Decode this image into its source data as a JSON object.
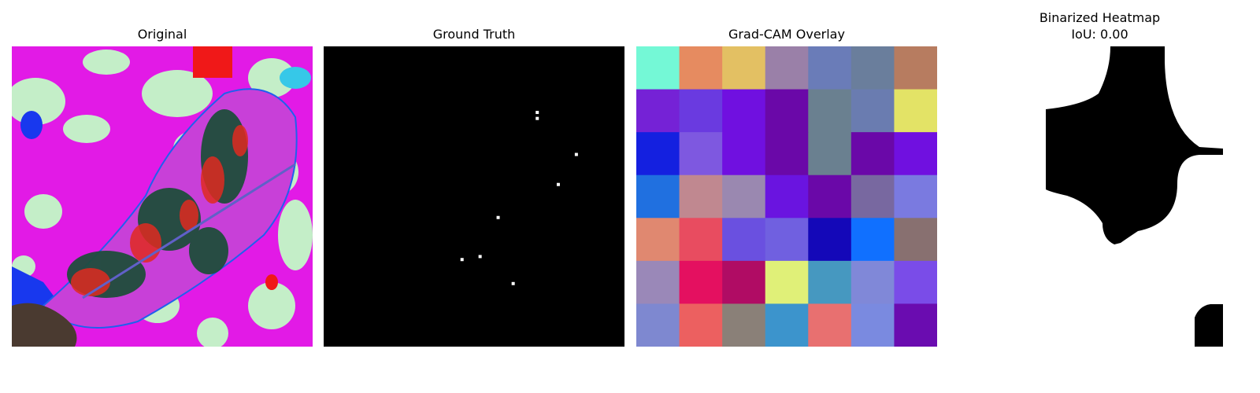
{
  "panels": [
    {
      "title": "Original"
    },
    {
      "title": "Ground Truth"
    },
    {
      "title": "Grad-CAM Overlay"
    },
    {
      "title": "Binarized Heatmap",
      "subtitle": "IoU: 0.00"
    }
  ],
  "ground_truth_points": [
    {
      "row": 0.22,
      "col": 0.71
    },
    {
      "row": 0.24,
      "col": 0.71
    },
    {
      "row": 0.36,
      "col": 0.84
    },
    {
      "row": 0.46,
      "col": 0.78
    },
    {
      "row": 0.57,
      "col": 0.58
    },
    {
      "row": 0.71,
      "col": 0.46
    },
    {
      "row": 0.7,
      "col": 0.52
    },
    {
      "row": 0.79,
      "col": 0.63
    }
  ],
  "gradcam_grid": [
    [
      "#74f8d6",
      "#e68b60",
      "#e3c063",
      "#9a80a8",
      "#6a7cb8",
      "#6a7e9c",
      "#b77c60"
    ],
    [
      "#7522d6",
      "#6a3ae0",
      "#7010e0",
      "#6a08a8",
      "#6a8090",
      "#6a7cb0",
      "#e3e366"
    ],
    [
      "#1420e0",
      "#7e58e0",
      "#7010e0",
      "#6a08a8",
      "#6a8090",
      "#6a08a8",
      "#7010e0"
    ],
    [
      "#2070e0",
      "#c08890",
      "#9a88b0",
      "#6a14e0",
      "#6a08a8",
      "#7868a0",
      "#7a7ae0"
    ],
    [
      "#e08870",
      "#e84c60",
      "#6a50e0",
      "#7060e0",
      "#1408b8",
      "#1070ff",
      "#887070"
    ],
    [
      "#9a88b8",
      "#e41060",
      "#b00c64",
      "#e0f078",
      "#4698c0",
      "#8088d8",
      "#7a4ce8"
    ],
    [
      "#7e88d0",
      "#ec6060",
      "#8a8078",
      "#3c94cc",
      "#e87070",
      "#7a8ae0",
      "#6a0cb0"
    ]
  ]
}
